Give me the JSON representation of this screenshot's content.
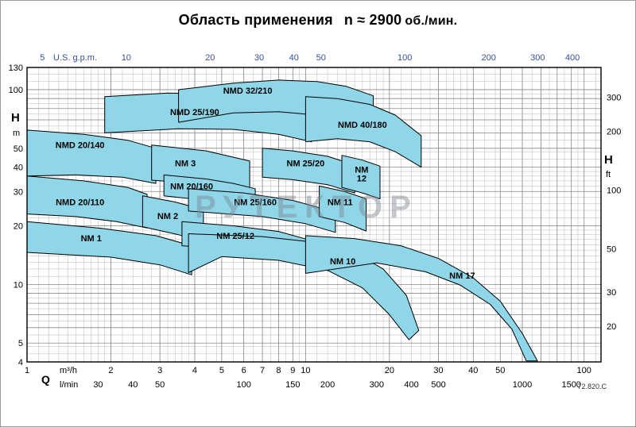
{
  "title": {
    "text": "Область применения",
    "n_eq": "n ≈ 2900",
    "unit": "об./мин."
  },
  "watermark": "РУТЕКТОР",
  "doc_code": "72.820.C",
  "colors": {
    "region_fill": "#8fd6e9",
    "region_stroke": "#000000",
    "grid_minor": "#b8b8b8",
    "grid_major": "#8a8a8a",
    "plot_border": "#000000",
    "gpm_scale": "#34519c",
    "axis_text": "#000000",
    "watermark": "#7d848e"
  },
  "chart_data": {
    "type": "area",
    "title": "Область применения n ≈ 2900 об./мин.",
    "legend": "none",
    "grid": "log-log fine grid",
    "x_axis": {
      "symbol": "Q",
      "units": [
        "m³/h",
        "l/min"
      ],
      "top_unit": "U.S. g.p.m.",
      "scale": "log",
      "range_m3h": [
        1,
        115
      ],
      "ticks_m3h": [
        1,
        2,
        3,
        4,
        5,
        6,
        7,
        8,
        9,
        10,
        20,
        30,
        40,
        50,
        100
      ],
      "ticks_lmin": [
        30,
        40,
        50,
        100,
        150,
        200,
        300,
        400,
        500,
        1000,
        1500
      ],
      "ticks_usgpm": [
        5,
        10,
        20,
        30,
        40,
        50,
        100,
        200,
        300,
        400
      ]
    },
    "y_axis": {
      "symbol": "H",
      "units": [
        "m",
        "ft"
      ],
      "scale": "log",
      "range_m": [
        4,
        130
      ],
      "ticks_m": [
        130,
        100,
        50,
        40,
        30,
        20,
        10,
        5,
        4
      ],
      "ticks_ft": [
        300,
        200,
        100,
        50,
        30,
        20
      ]
    },
    "conversions": {
      "usgpm_to_m3h": 0.22712,
      "lmin_to_m3h": 0.06,
      "ft_to_m": 0.3048
    },
    "regions": [
      {
        "name": "NMD 20/140",
        "label_lines": [
          "NMD 20/140"
        ],
        "label_at": [
          1.55,
          52
        ],
        "points": [
          [
            1,
            62
          ],
          [
            1.6,
            59
          ],
          [
            2.3,
            55
          ],
          [
            2.9,
            50
          ],
          [
            2.9,
            33
          ],
          [
            2.2,
            35.5
          ],
          [
            1.5,
            36.5
          ],
          [
            1,
            36
          ]
        ]
      },
      {
        "name": "NMD 20/110",
        "label_lines": [
          "NMD 20/110"
        ],
        "label_at": [
          1.55,
          26.5
        ],
        "points": [
          [
            1,
            36
          ],
          [
            1.6,
            34
          ],
          [
            2.3,
            31.5
          ],
          [
            2.7,
            29
          ],
          [
            2.7,
            19.5
          ],
          [
            2.1,
            21
          ],
          [
            1.5,
            22.3
          ],
          [
            1,
            23
          ]
        ]
      },
      {
        "name": "NM 1",
        "label_lines": [
          "NM 1"
        ],
        "label_at": [
          1.7,
          17.3
        ],
        "points": [
          [
            1,
            21
          ],
          [
            1.8,
            19.5
          ],
          [
            2.9,
            17.8
          ],
          [
            3.9,
            15.8
          ],
          [
            3.9,
            11.2
          ],
          [
            3,
            12.6
          ],
          [
            2,
            13.8
          ],
          [
            1,
            14.6
          ]
        ]
      },
      {
        "name": "NMD 25/190",
        "label_lines": [
          "NMD 25/190"
        ],
        "label_at": [
          4.0,
          77
        ],
        "points": [
          [
            1.9,
            92
          ],
          [
            3.2,
            96
          ],
          [
            5,
            95
          ],
          [
            7.5,
            89
          ],
          [
            10.5,
            78
          ],
          [
            10.5,
            54
          ],
          [
            8,
            59
          ],
          [
            5.5,
            62.5
          ],
          [
            3.5,
            63
          ],
          [
            1.9,
            60
          ]
        ]
      },
      {
        "name": "NMD 32/210",
        "label_lines": [
          "NMD 32/210"
        ],
        "label_at": [
          6.2,
          99
        ],
        "points": [
          [
            3.5,
            100
          ],
          [
            5.5,
            108
          ],
          [
            8,
            112
          ],
          [
            11,
            110
          ],
          [
            14,
            104
          ],
          [
            17.5,
            93
          ],
          [
            17.5,
            60
          ],
          [
            14,
            68
          ],
          [
            11,
            74
          ],
          [
            8,
            77
          ],
          [
            5.5,
            76
          ],
          [
            3.5,
            68
          ]
        ]
      },
      {
        "name": "NMD 40/180",
        "label_lines": [
          "NMD 40/180"
        ],
        "label_at": [
          16,
          66
        ],
        "points": [
          [
            10,
            92
          ],
          [
            13,
            90
          ],
          [
            17,
            84
          ],
          [
            21,
            74
          ],
          [
            26,
            58
          ],
          [
            26,
            40
          ],
          [
            21,
            48
          ],
          [
            17,
            54
          ],
          [
            13,
            56
          ],
          [
            10,
            54
          ]
        ]
      },
      {
        "name": "NM 3",
        "label_lines": [
          "NM 3"
        ],
        "label_at": [
          3.7,
          42
        ],
        "points": [
          [
            2.8,
            52
          ],
          [
            4.4,
            48.5
          ],
          [
            6.3,
            43
          ],
          [
            6.3,
            28.6
          ],
          [
            5,
            31.5
          ],
          [
            3.8,
            33.2
          ],
          [
            2.8,
            34.3
          ]
        ]
      },
      {
        "name": "NM 25/20",
        "label_lines": [
          "NM 25/20"
        ],
        "label_at": [
          10,
          42
        ],
        "points": [
          [
            7,
            50
          ],
          [
            9,
            48.5
          ],
          [
            12,
            45.5
          ],
          [
            15,
            41
          ],
          [
            15,
            29.5
          ],
          [
            12,
            32.5
          ],
          [
            9,
            34.5
          ],
          [
            7,
            35.5
          ]
        ]
      },
      {
        "name": "NM 12",
        "label_lines": [
          "NM",
          "12"
        ],
        "label_at": [
          15.9,
          37
        ],
        "points": [
          [
            13.5,
            46
          ],
          [
            16,
            43.5
          ],
          [
            18.5,
            40.5
          ],
          [
            18.5,
            27.5
          ],
          [
            16,
            29.5
          ],
          [
            13.5,
            31.5
          ]
        ]
      },
      {
        "name": "NM 2",
        "label_lines": [
          "NM 2"
        ],
        "label_at": [
          3.2,
          22.5
        ],
        "points": [
          [
            2.6,
            28.5
          ],
          [
            3.4,
            26.5
          ],
          [
            4.3,
            24.2
          ],
          [
            4.3,
            16.3
          ],
          [
            3.5,
            18
          ],
          [
            2.6,
            19.8
          ]
        ]
      },
      {
        "name": "NM 20/160",
        "label_lines": [
          "NM 20/160"
        ],
        "label_at": [
          3.9,
          32
        ],
        "points": [
          [
            3.1,
            36.5
          ],
          [
            4.4,
            34.8
          ],
          [
            5.5,
            33
          ],
          [
            6.6,
            31
          ],
          [
            6.6,
            23.8
          ],
          [
            5.5,
            25.5
          ],
          [
            4.4,
            27
          ],
          [
            3.1,
            28.5
          ]
        ]
      },
      {
        "name": "NM 25/160",
        "label_lines": [
          "NM 25/160"
        ],
        "label_at": [
          6.6,
          26.5
        ],
        "points": [
          [
            3.8,
            31
          ],
          [
            6,
            29.5
          ],
          [
            9,
            27
          ],
          [
            12.8,
            23.5
          ],
          [
            12.8,
            18.5
          ],
          [
            10,
            20.5
          ],
          [
            7,
            22.3
          ],
          [
            3.8,
            23.8
          ]
        ]
      },
      {
        "name": "NM 11",
        "label_lines": [
          "NM 11"
        ],
        "label_at": [
          13.3,
          26.5
        ],
        "points": [
          [
            11.2,
            32
          ],
          [
            13.8,
            30
          ],
          [
            16.5,
            27.5
          ],
          [
            16.5,
            18.8
          ],
          [
            13.8,
            20.8
          ],
          [
            11.2,
            22.3
          ]
        ]
      },
      {
        "name": "NM 25/12",
        "label_lines": [
          "NM 25/12"
        ],
        "label_at": [
          5.6,
          17.8
        ],
        "points": [
          [
            3.6,
            21
          ],
          [
            5.5,
            20
          ],
          [
            8,
            18.7
          ],
          [
            10.5,
            16.8
          ],
          [
            10.5,
            12.3
          ],
          [
            8.5,
            13.6
          ],
          [
            6,
            15
          ],
          [
            3.6,
            15.8
          ]
        ]
      },
      {
        "name": "NM 10",
        "label_lines": [
          "NM 10"
        ],
        "label_at": [
          13.6,
          13.2
        ],
        "points": [
          [
            3.8,
            18.2
          ],
          [
            7,
            17.6
          ],
          [
            11,
            16.4
          ],
          [
            15,
            14.6
          ],
          [
            19,
            12
          ],
          [
            23,
            8.8
          ],
          [
            25.5,
            5.8
          ],
          [
            23.5,
            5.2
          ],
          [
            20,
            7
          ],
          [
            16,
            9.6
          ],
          [
            12,
            11.8
          ],
          [
            8,
            13.3
          ],
          [
            5,
            13.9
          ],
          [
            3.8,
            11.5
          ]
        ]
      },
      {
        "name": "NM 17",
        "label_lines": [
          "NM 17"
        ],
        "label_at": [
          36.5,
          11.1
        ],
        "points": [
          [
            10,
            17.8
          ],
          [
            15,
            17.2
          ],
          [
            22,
            15.8
          ],
          [
            30,
            13.6
          ],
          [
            40,
            10.8
          ],
          [
            50,
            8.2
          ],
          [
            60,
            5.6
          ],
          [
            68,
            4.05
          ],
          [
            62,
            4.05
          ],
          [
            55,
            5.9
          ],
          [
            46,
            7.9
          ],
          [
            36,
            9.9
          ],
          [
            27,
            11.6
          ],
          [
            18,
            12.9
          ],
          [
            10,
            11.4
          ]
        ]
      }
    ]
  }
}
